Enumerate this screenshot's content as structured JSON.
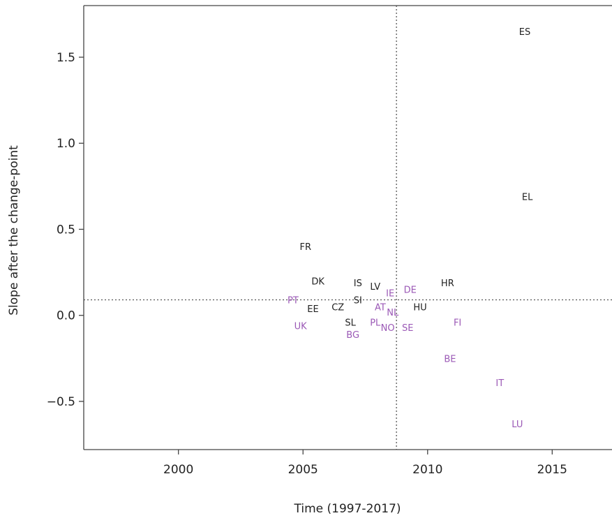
{
  "chart_data": {
    "type": "scatter",
    "title": "",
    "xlabel": "Time (1997-2017)",
    "ylabel": "Slope after the change-point",
    "xlim": [
      1996.2,
      2017.4
    ],
    "ylim": [
      -0.78,
      1.8
    ],
    "xticks": [
      2000,
      2005,
      2010,
      2015
    ],
    "yticks": [
      -0.5,
      0.0,
      0.5,
      1.0,
      1.5
    ],
    "xtick_labels": [
      "2000",
      "2005",
      "2010",
      "2015"
    ],
    "ytick_labels": [
      "−0.5",
      "0.0",
      "0.5",
      "1.0",
      "1.5"
    ],
    "reference_lines": {
      "vertical_x": 2008.75,
      "horizontal_y": 0.09,
      "style": "dotted"
    },
    "grid": false,
    "colors": {
      "group_black": "#222222",
      "group_purple": "#9b59b6"
    },
    "points": [
      {
        "label": "ES",
        "x": 2013.9,
        "y": 1.65,
        "group": "black"
      },
      {
        "label": "EL",
        "x": 2014.0,
        "y": 0.69,
        "group": "black"
      },
      {
        "label": "FR",
        "x": 2005.1,
        "y": 0.4,
        "group": "black"
      },
      {
        "label": "DK",
        "x": 2005.6,
        "y": 0.2,
        "group": "black"
      },
      {
        "label": "HR",
        "x": 2010.8,
        "y": 0.19,
        "group": "black"
      },
      {
        "label": "IS",
        "x": 2007.2,
        "y": 0.19,
        "group": "black"
      },
      {
        "label": "LV",
        "x": 2007.9,
        "y": 0.17,
        "group": "black"
      },
      {
        "label": "DE",
        "x": 2009.3,
        "y": 0.15,
        "group": "purple"
      },
      {
        "label": "IE",
        "x": 2008.5,
        "y": 0.13,
        "group": "purple"
      },
      {
        "label": "PT",
        "x": 2004.6,
        "y": 0.09,
        "group": "purple"
      },
      {
        "label": "SI",
        "x": 2007.2,
        "y": 0.09,
        "group": "black"
      },
      {
        "label": "EE",
        "x": 2005.4,
        "y": 0.04,
        "group": "black"
      },
      {
        "label": "CZ",
        "x": 2006.4,
        "y": 0.05,
        "group": "black"
      },
      {
        "label": "AT",
        "x": 2008.1,
        "y": 0.05,
        "group": "purple"
      },
      {
        "label": "HU",
        "x": 2009.7,
        "y": 0.05,
        "group": "black"
      },
      {
        "label": "NL",
        "x": 2008.6,
        "y": 0.02,
        "group": "purple"
      },
      {
        "label": "SL",
        "x": 2006.9,
        "y": -0.04,
        "group": "black"
      },
      {
        "label": "PL",
        "x": 2007.9,
        "y": -0.04,
        "group": "purple"
      },
      {
        "label": "FI",
        "x": 2011.2,
        "y": -0.04,
        "group": "purple"
      },
      {
        "label": "UK",
        "x": 2004.9,
        "y": -0.06,
        "group": "purple"
      },
      {
        "label": "NO",
        "x": 2008.4,
        "y": -0.07,
        "group": "purple"
      },
      {
        "label": "SE",
        "x": 2009.2,
        "y": -0.07,
        "group": "purple"
      },
      {
        "label": "BG",
        "x": 2007.0,
        "y": -0.11,
        "group": "purple"
      },
      {
        "label": "BE",
        "x": 2010.9,
        "y": -0.25,
        "group": "purple"
      },
      {
        "label": "IT",
        "x": 2012.9,
        "y": -0.39,
        "group": "purple"
      },
      {
        "label": "LU",
        "x": 2013.6,
        "y": -0.63,
        "group": "purple"
      }
    ]
  }
}
